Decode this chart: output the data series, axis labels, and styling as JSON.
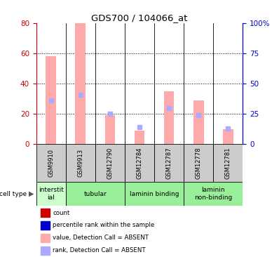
{
  "title": "GDS700 / 104066_at",
  "samples": [
    "GSM9910",
    "GSM9913",
    "GSM12790",
    "GSM12784",
    "GSM12787",
    "GSM12778",
    "GSM12781"
  ],
  "absent_values": [
    58,
    80,
    19,
    9,
    35,
    29,
    10
  ],
  "absent_ranks": [
    36,
    41,
    25,
    14,
    30,
    24,
    13
  ],
  "ylim_left": [
    0,
    80
  ],
  "ylim_right": [
    0,
    100
  ],
  "left_ticks": [
    0,
    20,
    40,
    60,
    80
  ],
  "right_ticks": [
    0,
    25,
    50,
    75,
    100
  ],
  "right_tick_labels": [
    "0",
    "25",
    "50",
    "75",
    "100%"
  ],
  "cell_types": [
    {
      "label": "interstit\nial",
      "span": [
        0,
        1
      ],
      "color": "#ccffcc"
    },
    {
      "label": "tubular",
      "span": [
        1,
        3
      ],
      "color": "#99ee99"
    },
    {
      "label": "laminin binding",
      "span": [
        3,
        5
      ],
      "color": "#99ee99"
    },
    {
      "label": "laminin\nnon-binding",
      "span": [
        5,
        7
      ],
      "color": "#99ee99"
    }
  ],
  "bar_color_absent": "#ffaaaa",
  "rank_color_absent": "#aaaaff",
  "bar_color_present": "#dd0000",
  "rank_color_present": "#0000dd",
  "bg_color": "#ffffff",
  "axis_left_color": "#cc0000",
  "axis_right_color": "#0000cc",
  "sample_box_color": "#cccccc",
  "legend_items": [
    {
      "label": "count",
      "color": "#cc0000"
    },
    {
      "label": "percentile rank within the sample",
      "color": "#0000cc"
    },
    {
      "label": "value, Detection Call = ABSENT",
      "color": "#ffaaaa"
    },
    {
      "label": "rank, Detection Call = ABSENT",
      "color": "#aaaaff"
    }
  ]
}
